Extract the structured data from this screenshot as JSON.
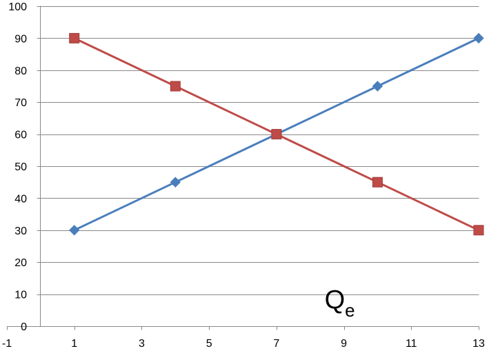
{
  "chart_data": {
    "type": "line",
    "title": "",
    "xlabel": "",
    "ylabel": "",
    "xlim": [
      -1,
      13
    ],
    "ylim": [
      0,
      100
    ],
    "x_ticks": [
      -1,
      1,
      3,
      5,
      7,
      9,
      11,
      13
    ],
    "y_ticks": [
      0,
      10,
      20,
      30,
      40,
      50,
      60,
      70,
      80,
      90,
      100
    ],
    "grid": {
      "horizontal": true,
      "vertical": false
    },
    "legend": "none",
    "series": [
      {
        "x": [
          1,
          4,
          7,
          10,
          13
        ],
        "values": [
          30,
          45,
          60,
          75,
          90
        ],
        "color": "#4a7ebb",
        "marker": "diamond"
      },
      {
        "x": [
          1,
          4,
          7,
          10,
          13
        ],
        "values": [
          90,
          75,
          60,
          45,
          30
        ],
        "color": "#be4b48",
        "marker": "square"
      }
    ],
    "annotations": [
      {
        "text": "Q",
        "subscript": "e",
        "x": 9,
        "y": 8
      }
    ]
  },
  "colors": {
    "grid": "#888888",
    "axis": "#888888"
  }
}
